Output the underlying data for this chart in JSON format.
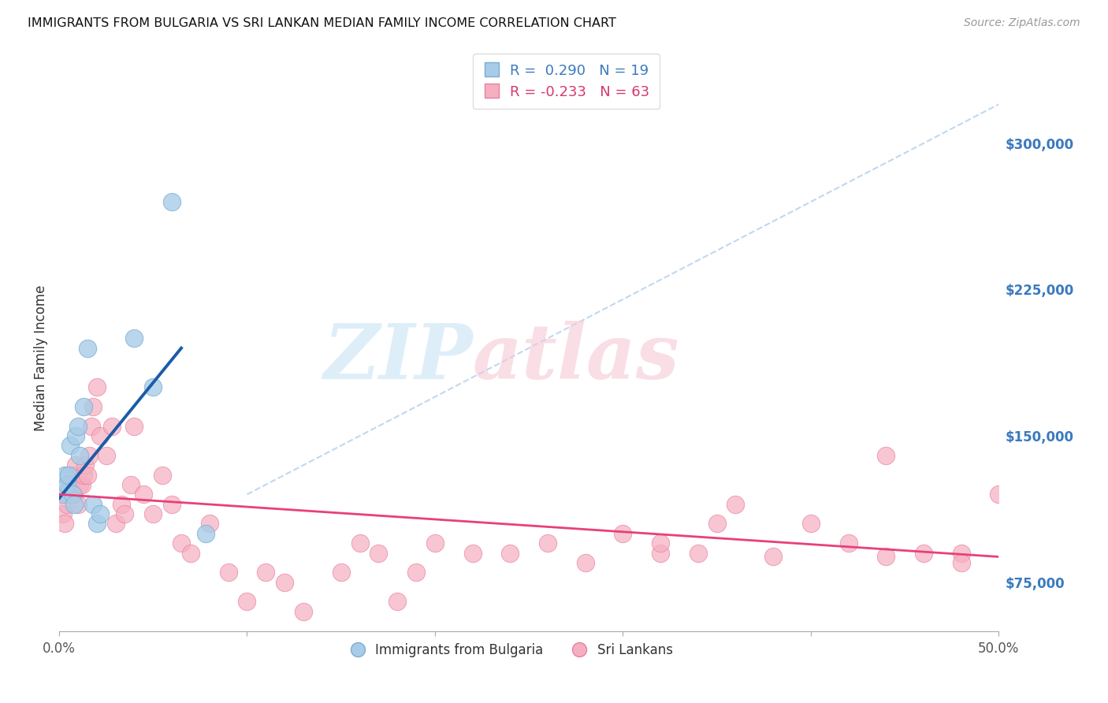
{
  "title": "IMMIGRANTS FROM BULGARIA VS SRI LANKAN MEDIAN FAMILY INCOME CORRELATION CHART",
  "source": "Source: ZipAtlas.com",
  "ylabel": "Median Family Income",
  "right_yticks": [
    75000,
    150000,
    225000,
    300000
  ],
  "right_ytick_labels": [
    "$75,000",
    "$150,000",
    "$225,000",
    "$300,000"
  ],
  "legend_entries": [
    {
      "label": "R =  0.290   N = 19"
    },
    {
      "label": "R = -0.233   N = 63"
    }
  ],
  "legend_r_colors": [
    "#3a7abf",
    "#d63870"
  ],
  "bg_color": "#ffffff",
  "grid_color": "#cccccc",
  "bulgaria_color": "#a8cce8",
  "srilanka_color": "#f5afc0",
  "bulgaria_edge": "#7aadd0",
  "srilanka_edge": "#e880a0",
  "blue_line_color": "#1a5ca8",
  "pink_line_color": "#e8407a",
  "ref_line_color": "#c0d8f0",
  "xlim": [
    0.0,
    0.5
  ],
  "ylim": [
    50000,
    330000
  ],
  "xticks": [
    0.0,
    0.1,
    0.2,
    0.3,
    0.4,
    0.5
  ],
  "xtick_labels_show": [
    "0.0%",
    "",
    "",
    "",
    "",
    "50.0%"
  ],
  "blue_line_x": [
    0.0,
    0.065
  ],
  "blue_line_y": [
    118000,
    195000
  ],
  "pink_line_x": [
    0.0,
    0.5
  ],
  "pink_line_y": [
    120000,
    88000
  ],
  "ref_line_x": [
    0.1,
    0.5
  ],
  "ref_line_y": [
    120000,
    320000
  ],
  "bulgaria_x": [
    0.002,
    0.003,
    0.004,
    0.005,
    0.006,
    0.007,
    0.008,
    0.009,
    0.01,
    0.011,
    0.013,
    0.015,
    0.018,
    0.02,
    0.022,
    0.04,
    0.05,
    0.06,
    0.078
  ],
  "bulgaria_y": [
    120000,
    130000,
    125000,
    130000,
    145000,
    120000,
    115000,
    150000,
    155000,
    140000,
    165000,
    195000,
    115000,
    105000,
    110000,
    200000,
    175000,
    270000,
    100000
  ],
  "srilanka_x": [
    0.002,
    0.003,
    0.004,
    0.005,
    0.006,
    0.007,
    0.008,
    0.009,
    0.01,
    0.011,
    0.012,
    0.013,
    0.014,
    0.015,
    0.016,
    0.017,
    0.018,
    0.02,
    0.022,
    0.025,
    0.028,
    0.03,
    0.033,
    0.035,
    0.038,
    0.04,
    0.045,
    0.05,
    0.055,
    0.06,
    0.065,
    0.07,
    0.08,
    0.09,
    0.1,
    0.11,
    0.12,
    0.13,
    0.15,
    0.16,
    0.17,
    0.18,
    0.19,
    0.2,
    0.22,
    0.24,
    0.26,
    0.28,
    0.3,
    0.32,
    0.34,
    0.36,
    0.38,
    0.4,
    0.42,
    0.44,
    0.46,
    0.48,
    0.5,
    0.32,
    0.35,
    0.44,
    0.48
  ],
  "srilanka_y": [
    110000,
    105000,
    115000,
    120000,
    125000,
    130000,
    120000,
    135000,
    115000,
    125000,
    125000,
    130000,
    135000,
    130000,
    140000,
    155000,
    165000,
    175000,
    150000,
    140000,
    155000,
    105000,
    115000,
    110000,
    125000,
    155000,
    120000,
    110000,
    130000,
    115000,
    95000,
    90000,
    105000,
    80000,
    65000,
    80000,
    75000,
    60000,
    80000,
    95000,
    90000,
    65000,
    80000,
    95000,
    90000,
    90000,
    95000,
    85000,
    100000,
    90000,
    90000,
    115000,
    88000,
    105000,
    95000,
    88000,
    90000,
    90000,
    120000,
    95000,
    105000,
    140000,
    85000
  ]
}
